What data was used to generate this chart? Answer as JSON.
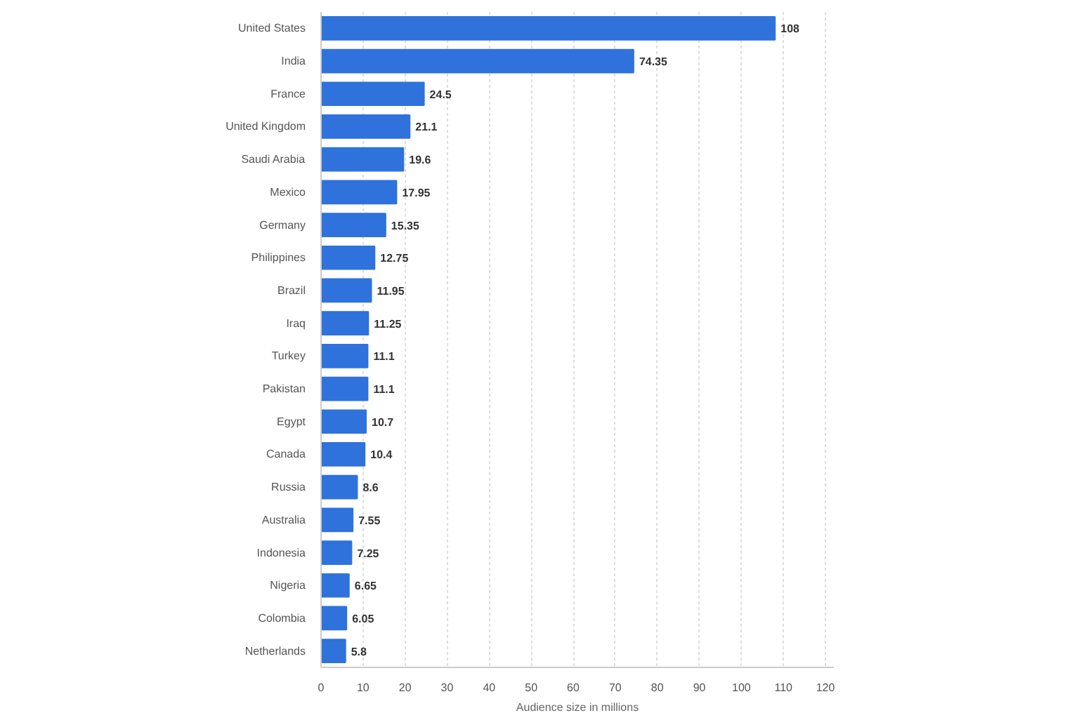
{
  "chart_data": {
    "type": "bar",
    "orientation": "horizontal",
    "xlabel": "Audience size in millions",
    "categories": [
      "United States",
      "India",
      "France",
      "United Kingdom",
      "Saudi Arabia",
      "Mexico",
      "Germany",
      "Philippines",
      "Brazil",
      "Iraq",
      "Turkey",
      "Pakistan",
      "Egypt",
      "Canada",
      "Russia",
      "Australia",
      "Indonesia",
      "Nigeria",
      "Colombia",
      "Netherlands"
    ],
    "values": [
      108,
      74.35,
      24.5,
      21.1,
      19.6,
      17.95,
      15.35,
      12.75,
      11.95,
      11.25,
      11.1,
      11.1,
      10.7,
      10.4,
      8.6,
      7.55,
      7.25,
      6.65,
      6.05,
      5.8
    ],
    "color": "#2f72dc",
    "data_labels": true,
    "xlim": [
      0,
      122
    ],
    "xticks": [
      0,
      10,
      20,
      30,
      40,
      50,
      60,
      70,
      80,
      90,
      100,
      110,
      120
    ],
    "grid": "x"
  }
}
